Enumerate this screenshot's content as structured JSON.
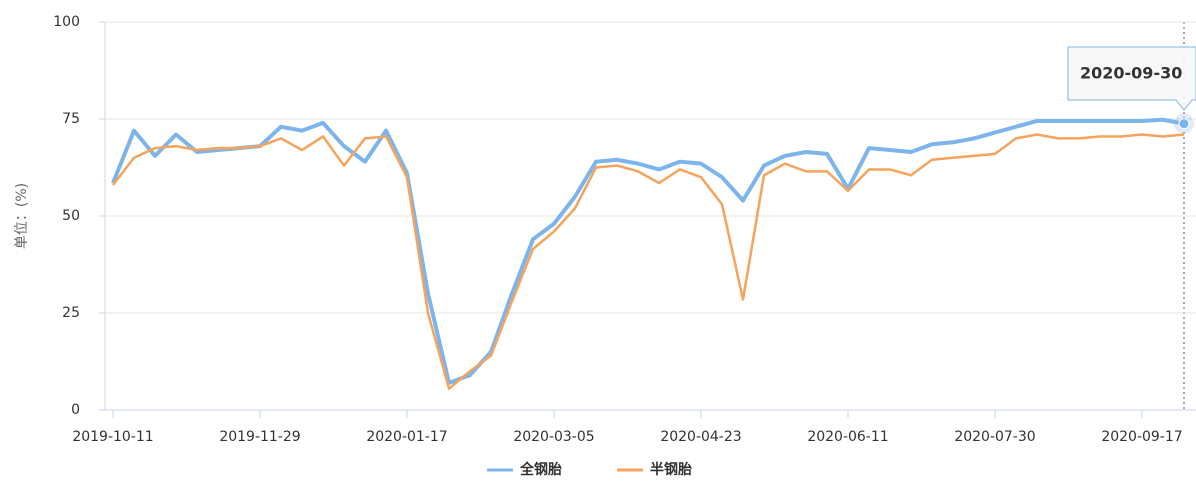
{
  "chart_data": {
    "type": "line",
    "ylabel": "单位：(%)",
    "categories": [
      "2019-10-11",
      null,
      null,
      null,
      null,
      null,
      null,
      "2019-11-29",
      null,
      null,
      null,
      null,
      null,
      null,
      "2020-01-17",
      null,
      null,
      null,
      null,
      null,
      null,
      "2020-03-05",
      null,
      null,
      null,
      null,
      null,
      null,
      "2020-04-23",
      null,
      null,
      null,
      null,
      null,
      null,
      "2020-06-11",
      null,
      null,
      null,
      null,
      null,
      null,
      "2020-07-30",
      null,
      null,
      null,
      null,
      null,
      null,
      "2020-09-17",
      null,
      "2020-09-30"
    ],
    "series": [
      {
        "name": "全钢胎",
        "color": "#7cb5ec",
        "values": [
          58.5,
          72,
          65.5,
          71,
          66.5,
          67,
          67.5,
          68,
          73,
          72,
          74,
          68,
          64,
          72,
          61,
          30,
          7,
          9,
          15,
          30,
          44,
          48,
          55,
          64,
          64.5,
          63.5,
          62,
          64,
          63.5,
          60,
          54,
          63,
          65.5,
          66.5,
          66,
          57,
          67.5,
          67,
          66.5,
          68.5,
          69,
          70,
          71.5,
          73,
          74.5,
          74.5,
          74.5,
          74.5,
          74.5,
          74.5,
          74.8,
          73.8
        ]
      },
      {
        "name": "半钢胎",
        "color": "#f7a35c",
        "values": [
          58,
          65,
          67.5,
          68,
          67,
          67.5,
          67.5,
          68,
          70,
          67,
          70.5,
          63,
          70,
          70.5,
          60,
          25,
          5.5,
          10,
          14,
          28,
          41.5,
          46,
          52,
          62.5,
          63,
          61.5,
          58.5,
          62,
          60,
          53,
          28.5,
          60.5,
          63.5,
          61.5,
          61.5,
          56.5,
          62,
          62,
          60.5,
          64.5,
          65,
          65.5,
          66,
          70,
          71,
          70,
          70,
          70.5,
          70.5,
          71,
          70.5,
          71
        ]
      }
    ],
    "ylim": [
      0,
      100
    ],
    "yticks": [
      0,
      25,
      50,
      75,
      100
    ],
    "grid": true
  }
}
